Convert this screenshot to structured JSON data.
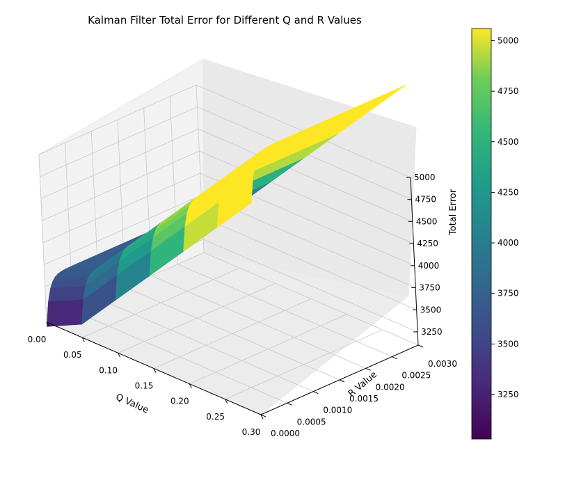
{
  "chart_data": {
    "type": "surface",
    "title": "Kalman Filter Total Error for Different Q and R Values",
    "xlabel": "Q Value",
    "ylabel": "R Value",
    "zlabel": "Total Error",
    "xlim": [
      0.0,
      0.3
    ],
    "ylim": [
      0.0,
      0.003
    ],
    "zlim": [
      3100,
      5000
    ],
    "x_ticks": [
      0.0,
      0.05,
      0.1,
      0.15,
      0.2,
      0.25,
      0.3
    ],
    "x_tick_labels": [
      "0.00",
      "0.05",
      "0.10",
      "0.15",
      "0.20",
      "0.25",
      "0.30"
    ],
    "y_ticks": [
      0.0,
      0.0005,
      0.001,
      0.0015,
      0.002,
      0.0025,
      0.003
    ],
    "y_tick_labels": [
      "0.0000",
      "0.0005",
      "0.0010",
      "0.0015",
      "0.0020",
      "0.0025",
      "0.0030"
    ],
    "z_ticks": [
      3250,
      3500,
      3750,
      4000,
      4250,
      4500,
      4750,
      5000
    ],
    "z_tick_labels": [
      "3250",
      "3500",
      "3750",
      "4000",
      "4250",
      "4500",
      "4750",
      "5000"
    ],
    "surface": {
      "q_values": [
        0.0,
        0.05,
        0.1,
        0.15,
        0.2,
        0.25,
        0.3
      ],
      "total_error_min_r": [
        3050,
        3250,
        3700,
        4150,
        4600,
        5050,
        5500
      ],
      "total_error_max_r": [
        3600,
        3800,
        4250,
        4700,
        5150,
        5600,
        6050
      ],
      "colormap": "viridis"
    },
    "colorbar": {
      "min": 3030,
      "max": 5060,
      "ticks": [
        3250,
        3500,
        3750,
        4000,
        4250,
        4500,
        4750,
        5000
      ],
      "tick_labels": [
        "3250",
        "3500",
        "3750",
        "4000",
        "4250",
        "4500",
        "4750",
        "5000"
      ]
    },
    "grid": true
  }
}
